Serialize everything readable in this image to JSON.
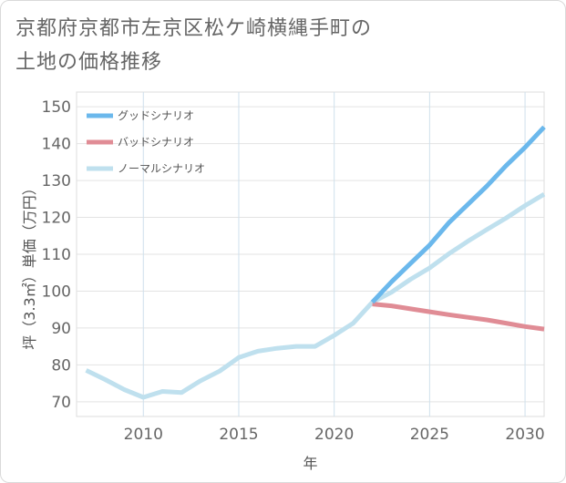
{
  "chart_data": {
    "type": "line",
    "title_line1": "京都府京都市左京区松ケ崎横縄手町の",
    "title_line2": "土地の価格推移",
    "xlabel": "年",
    "ylabel": "坪（3.3㎡）単価（万円）",
    "xlim": [
      2006.5,
      2031
    ],
    "ylim": [
      66,
      154
    ],
    "x_ticks": [
      2010,
      2015,
      2020,
      2025,
      2030
    ],
    "y_ticks": [
      70,
      80,
      90,
      100,
      110,
      120,
      130,
      140,
      150
    ],
    "series": [
      {
        "name": "グッドシナリオ",
        "color": "#6bb8ec",
        "x": [
          2022,
          2023,
          2024,
          2025,
          2026,
          2027,
          2028,
          2029,
          2030,
          2031
        ],
        "values": [
          97,
          102.5,
          107.5,
          112.5,
          118.5,
          123.5,
          128.5,
          134,
          139,
          144.5
        ]
      },
      {
        "name": "バッドシナリオ",
        "color": "#e08c95",
        "x": [
          2022,
          2023,
          2024,
          2025,
          2026,
          2027,
          2028,
          2029,
          2030,
          2031
        ],
        "values": [
          96.5,
          96,
          95.2,
          94.4,
          93.6,
          92.9,
          92.2,
          91.3,
          90.4,
          89.7
        ]
      },
      {
        "name": "ノーマルシナリオ",
        "color": "#bfe0ee",
        "x": [
          2007,
          2008,
          2009,
          2010,
          2011,
          2012,
          2013,
          2014,
          2015,
          2016,
          2017,
          2018,
          2019,
          2020,
          2021,
          2022,
          2023,
          2024,
          2025,
          2026,
          2027,
          2028,
          2029,
          2030,
          2031
        ],
        "values": [
          78.5,
          76,
          73.3,
          71.2,
          72.8,
          72.5,
          75.7,
          78.3,
          82,
          83.7,
          84.5,
          85,
          85,
          88,
          91.3,
          97,
          99.7,
          103.2,
          106.3,
          110.1,
          113.5,
          116.7,
          119.8,
          123.2,
          126.3
        ]
      }
    ]
  }
}
